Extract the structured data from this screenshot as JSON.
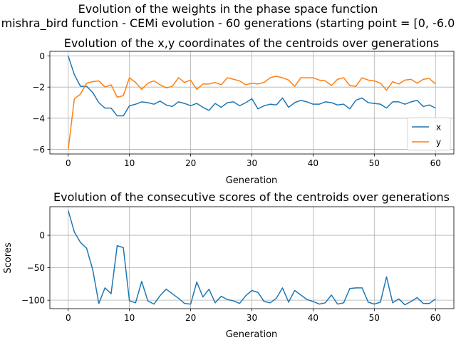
{
  "figure": {
    "suptitle_line1": "Evolution of the weights in the phase space  function",
    "suptitle_line2": "mishra_bird function - CEMi evolution - 60 generations (starting point = [0, -6.0"
  },
  "chart_data": [
    {
      "type": "line",
      "title": "Evolution of the x,y coordinates of the centroids over generations",
      "xlabel": "Generation",
      "ylabel": "",
      "xlim": [
        -3,
        63
      ],
      "ylim": [
        -6.3,
        0.3
      ],
      "xticks": [
        0,
        10,
        20,
        30,
        40,
        50,
        60
      ],
      "yticks": [
        -6,
        -4,
        -2,
        0
      ],
      "grid": true,
      "legend_position": "lower-right",
      "x": [
        0,
        1,
        2,
        3,
        4,
        5,
        6,
        7,
        8,
        9,
        10,
        11,
        12,
        13,
        14,
        15,
        16,
        17,
        18,
        19,
        20,
        21,
        22,
        23,
        24,
        25,
        26,
        27,
        28,
        29,
        30,
        31,
        32,
        33,
        34,
        35,
        36,
        37,
        38,
        39,
        40,
        41,
        42,
        43,
        44,
        45,
        46,
        47,
        48,
        49,
        50,
        51,
        52,
        53,
        54,
        55,
        56,
        57,
        58,
        59,
        60
      ],
      "series": [
        {
          "name": "x",
          "color": "#1f77b4",
          "values": [
            0.0,
            -1.2,
            -1.95,
            -1.95,
            -2.35,
            -3.0,
            -3.35,
            -3.35,
            -3.85,
            -3.85,
            -3.2,
            -3.1,
            -2.95,
            -3.0,
            -3.1,
            -2.9,
            -3.15,
            -3.25,
            -2.95,
            -3.05,
            -3.2,
            -3.05,
            -3.3,
            -3.5,
            -3.05,
            -3.3,
            -3.0,
            -2.95,
            -3.2,
            -3.0,
            -2.75,
            -3.4,
            -3.2,
            -3.1,
            -3.15,
            -2.7,
            -3.3,
            -3.0,
            -2.85,
            -2.95,
            -3.1,
            -3.1,
            -2.95,
            -3.0,
            -3.15,
            -3.1,
            -3.4,
            -2.85,
            -2.7,
            -3.0,
            -3.05,
            -3.1,
            -3.35,
            -2.95,
            -2.95,
            -3.1,
            -2.95,
            -2.85,
            -3.25,
            -3.15,
            -3.35
          ]
        },
        {
          "name": "y",
          "color": "#ff7f0e",
          "values": [
            -6.0,
            -2.75,
            -2.45,
            -1.75,
            -1.65,
            -1.6,
            -2.0,
            -1.85,
            -2.65,
            -2.55,
            -1.4,
            -1.7,
            -2.15,
            -1.75,
            -1.6,
            -1.85,
            -2.05,
            -1.95,
            -1.4,
            -1.7,
            -1.55,
            -2.15,
            -1.8,
            -1.8,
            -1.7,
            -1.85,
            -1.4,
            -1.5,
            -1.6,
            -1.85,
            -1.75,
            -1.8,
            -1.7,
            -1.4,
            -1.3,
            -1.4,
            -1.55,
            -1.95,
            -1.4,
            -1.4,
            -1.4,
            -1.55,
            -1.6,
            -1.9,
            -1.5,
            -1.4,
            -1.9,
            -1.95,
            -1.4,
            -1.55,
            -1.6,
            -1.75,
            -2.2,
            -1.65,
            -1.8,
            -1.55,
            -1.5,
            -1.75,
            -1.5,
            -1.45,
            -1.8
          ]
        }
      ]
    },
    {
      "type": "line",
      "title": "Evolution of the consecutive scores of the centroids over generations",
      "xlabel": "Generation",
      "ylabel": "Scores",
      "xlim": [
        -3,
        63
      ],
      "ylim": [
        -113,
        44
      ],
      "xticks": [
        0,
        10,
        20,
        30,
        40,
        50,
        60
      ],
      "yticks": [
        -100,
        -50,
        0
      ],
      "grid": true,
      "x": [
        0,
        1,
        2,
        3,
        4,
        5,
        6,
        7,
        8,
        9,
        10,
        11,
        12,
        13,
        14,
        15,
        16,
        17,
        18,
        19,
        20,
        21,
        22,
        23,
        24,
        25,
        26,
        27,
        28,
        29,
        30,
        31,
        32,
        33,
        34,
        35,
        36,
        37,
        38,
        39,
        40,
        41,
        42,
        43,
        44,
        45,
        46,
        47,
        48,
        49,
        50,
        51,
        52,
        53,
        54,
        55,
        56,
        57,
        58,
        59,
        60
      ],
      "series": [
        {
          "color": "#1f77b4",
          "values": [
            38,
            5,
            -11,
            -20,
            -53,
            -105,
            -81,
            -90,
            -16,
            -19,
            -101,
            -104,
            -71,
            -101,
            -106,
            -93,
            -83,
            -90,
            -97,
            -105,
            -106,
            -72,
            -95,
            -83,
            -104,
            -94,
            -99,
            -101,
            -105,
            -93,
            -85,
            -88,
            -102,
            -104,
            -97,
            -81,
            -103,
            -85,
            -92,
            -99,
            -102,
            -106,
            -104,
            -92,
            -106,
            -104,
            -82,
            -81,
            -81,
            -103,
            -106,
            -103,
            -64,
            -104,
            -98,
            -107,
            -102,
            -96,
            -105,
            -105,
            -98
          ]
        }
      ]
    }
  ]
}
